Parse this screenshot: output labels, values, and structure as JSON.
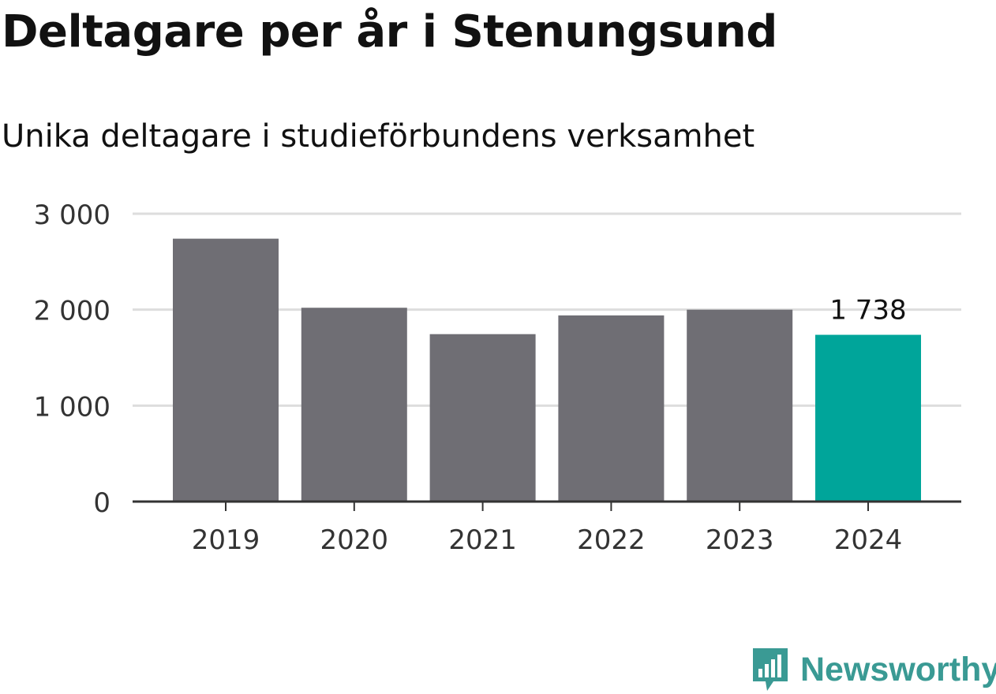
{
  "title": "Deltagare per år i Stenungsund",
  "subtitle": "Unika deltagare i studieförbundens verksamhet",
  "brand": {
    "name": "Newsworthy",
    "icon": "newsworthy-logo-icon",
    "color": "#3a9a94"
  },
  "chart_data": {
    "type": "bar",
    "categories": [
      "2019",
      "2020",
      "2021",
      "2022",
      "2023",
      "2024"
    ],
    "values": [
      2740,
      2020,
      1745,
      1940,
      2000,
      1738
    ],
    "highlight_index": 5,
    "highlight_label": "1 738",
    "ylim": [
      0,
      3000
    ],
    "yticks": [
      0,
      1000,
      2000,
      3000
    ],
    "ytick_labels": [
      "0",
      "1 000",
      "2 000",
      "3 000"
    ],
    "grid": true,
    "colors": {
      "bar": "#6f6e74",
      "highlight": "#00a59a",
      "grid": "#dddddd",
      "axis": "#333333"
    }
  }
}
